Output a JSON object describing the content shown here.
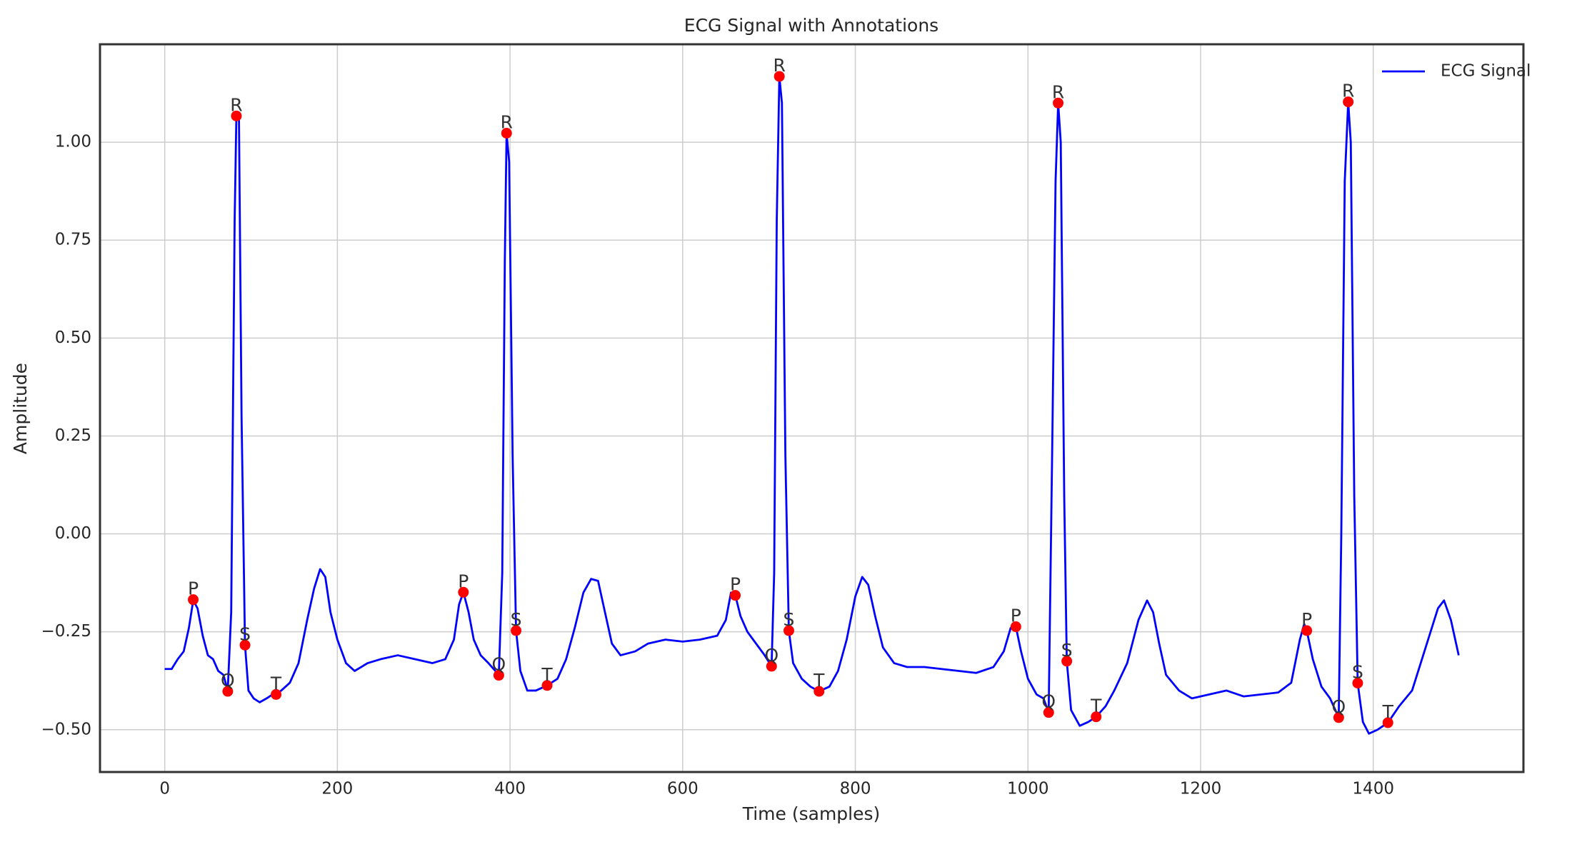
{
  "chart_data": {
    "type": "line",
    "title": "ECG Signal with Annotations",
    "x_label": "Time (samples)",
    "y_label": "Amplitude",
    "xlim": [
      -75,
      1574
    ],
    "ylim": [
      -0.608,
      1.25
    ],
    "xticks": [
      0,
      200,
      400,
      600,
      800,
      1000,
      1200,
      1400
    ],
    "yticks": [
      {
        "value": -0.5,
        "label": "−0.50"
      },
      {
        "value": -0.25,
        "label": "−0.25"
      },
      {
        "value": 0,
        "label": "0.00"
      },
      {
        "value": 0.25,
        "label": "0.25"
      },
      {
        "value": 0.5,
        "label": "0.50"
      },
      {
        "value": 0.75,
        "label": "0.75"
      },
      {
        "value": 1,
        "label": "1.00"
      }
    ],
    "grid": true,
    "legend": "upper right",
    "series": [
      {
        "name": "ECG Signal",
        "color": "#0000ff",
        "x": [
          0,
          8,
          15,
          22,
          28,
          33,
          38,
          44,
          50,
          56,
          62,
          68,
          73,
          77,
          81,
          83,
          86,
          89,
          93,
          97,
          103,
          110,
          118,
          125,
          129,
          135,
          145,
          155,
          165,
          173,
          180,
          186,
          192,
          200,
          210,
          220,
          235,
          250,
          270,
          290,
          310,
          325,
          335,
          341,
          346,
          352,
          358,
          366,
          375,
          383,
          387,
          391,
          394,
          396,
          399,
          403,
          407,
          412,
          420,
          430,
          443,
          455,
          465,
          475,
          485,
          494,
          502,
          510,
          518,
          528,
          545,
          560,
          580,
          600,
          620,
          640,
          650,
          656,
          661,
          667,
          675,
          685,
          695,
          703,
          706,
          709,
          712,
          715,
          719,
          723,
          728,
          738,
          748,
          758,
          770,
          780,
          790,
          800,
          808,
          815,
          823,
          832,
          845,
          860,
          880,
          900,
          920,
          940,
          960,
          972,
          980,
          986,
          992,
          1000,
          1010,
          1018,
          1024,
          1028,
          1032,
          1035,
          1038,
          1042,
          1045,
          1050,
          1060,
          1070,
          1079,
          1090,
          1100,
          1115,
          1128,
          1138,
          1145,
          1152,
          1160,
          1175,
          1190,
          1210,
          1230,
          1250,
          1270,
          1290,
          1305,
          1315,
          1320,
          1323,
          1330,
          1340,
          1350,
          1360,
          1363,
          1367,
          1371,
          1374,
          1378,
          1382,
          1388,
          1395,
          1405,
          1417,
          1430,
          1445,
          1455,
          1465,
          1475,
          1482,
          1490,
          1499
        ],
        "values": [
          -0.345,
          -0.345,
          -0.32,
          -0.3,
          -0.24,
          -0.17,
          -0.19,
          -0.26,
          -0.31,
          -0.32,
          -0.35,
          -0.36,
          -0.4,
          -0.2,
          0.8,
          1.067,
          1.06,
          0.3,
          -0.284,
          -0.4,
          -0.42,
          -0.43,
          -0.42,
          -0.41,
          -0.41,
          -0.4,
          -0.38,
          -0.33,
          -0.22,
          -0.14,
          -0.09,
          -0.11,
          -0.2,
          -0.27,
          -0.33,
          -0.35,
          -0.33,
          -0.32,
          -0.31,
          -0.32,
          -0.33,
          -0.32,
          -0.27,
          -0.18,
          -0.149,
          -0.2,
          -0.27,
          -0.31,
          -0.33,
          -0.35,
          -0.361,
          -0.1,
          0.7,
          1.023,
          0.95,
          0.2,
          -0.247,
          -0.35,
          -0.4,
          -0.4,
          -0.387,
          -0.37,
          -0.32,
          -0.24,
          -0.15,
          -0.115,
          -0.12,
          -0.2,
          -0.28,
          -0.31,
          -0.3,
          -0.28,
          -0.27,
          -0.275,
          -0.27,
          -0.26,
          -0.22,
          -0.15,
          -0.157,
          -0.21,
          -0.25,
          -0.28,
          -0.31,
          -0.338,
          -0.1,
          0.8,
          1.168,
          1.1,
          0.2,
          -0.247,
          -0.33,
          -0.37,
          -0.39,
          -0.402,
          -0.39,
          -0.35,
          -0.27,
          -0.16,
          -0.11,
          -0.13,
          -0.21,
          -0.29,
          -0.33,
          -0.34,
          -0.34,
          -0.345,
          -0.35,
          -0.355,
          -0.34,
          -0.3,
          -0.24,
          -0.237,
          -0.3,
          -0.37,
          -0.41,
          -0.42,
          -0.456,
          0.2,
          0.9,
          1.1,
          1.0,
          0.1,
          -0.325,
          -0.45,
          -0.49,
          -0.48,
          -0.467,
          -0.44,
          -0.4,
          -0.33,
          -0.22,
          -0.17,
          -0.2,
          -0.28,
          -0.36,
          -0.4,
          -0.42,
          -0.41,
          -0.4,
          -0.415,
          -0.41,
          -0.405,
          -0.38,
          -0.27,
          -0.23,
          -0.247,
          -0.32,
          -0.39,
          -0.42,
          -0.469,
          0,
          0.9,
          1.103,
          1.0,
          0.1,
          -0.381,
          -0.48,
          -0.51,
          -0.5,
          -0.482,
          -0.44,
          -0.4,
          -0.33,
          -0.26,
          -0.19,
          -0.17,
          -0.22,
          -0.31
        ]
      }
    ],
    "annotation_color": "#ff0000",
    "annotations": [
      {
        "label": "P",
        "x": 33,
        "y": -0.168
      },
      {
        "label": "Q",
        "x": 73,
        "y": -0.402
      },
      {
        "label": "R",
        "x": 83,
        "y": 1.067
      },
      {
        "label": "S",
        "x": 93,
        "y": -0.284
      },
      {
        "label": "T",
        "x": 129,
        "y": -0.41
      },
      {
        "label": "P",
        "x": 346,
        "y": -0.149
      },
      {
        "label": "Q",
        "x": 387,
        "y": -0.361
      },
      {
        "label": "R",
        "x": 396,
        "y": 1.023
      },
      {
        "label": "S",
        "x": 407,
        "y": -0.247
      },
      {
        "label": "T",
        "x": 443,
        "y": -0.387
      },
      {
        "label": "P",
        "x": 661,
        "y": -0.157
      },
      {
        "label": "Q",
        "x": 703,
        "y": -0.338
      },
      {
        "label": "R",
        "x": 712,
        "y": 1.168
      },
      {
        "label": "S",
        "x": 723,
        "y": -0.247
      },
      {
        "label": "T",
        "x": 758,
        "y": -0.402
      },
      {
        "label": "P",
        "x": 986,
        "y": -0.237
      },
      {
        "label": "Q",
        "x": 1024,
        "y": -0.456
      },
      {
        "label": "R",
        "x": 1035,
        "y": 1.1
      },
      {
        "label": "S",
        "x": 1045,
        "y": -0.325
      },
      {
        "label": "T",
        "x": 1079,
        "y": -0.467
      },
      {
        "label": "P",
        "x": 1323,
        "y": -0.247
      },
      {
        "label": "Q",
        "x": 1360,
        "y": -0.469
      },
      {
        "label": "R",
        "x": 1371,
        "y": 1.103
      },
      {
        "label": "S",
        "x": 1382,
        "y": -0.381
      },
      {
        "label": "T",
        "x": 1417,
        "y": -0.482
      }
    ]
  }
}
